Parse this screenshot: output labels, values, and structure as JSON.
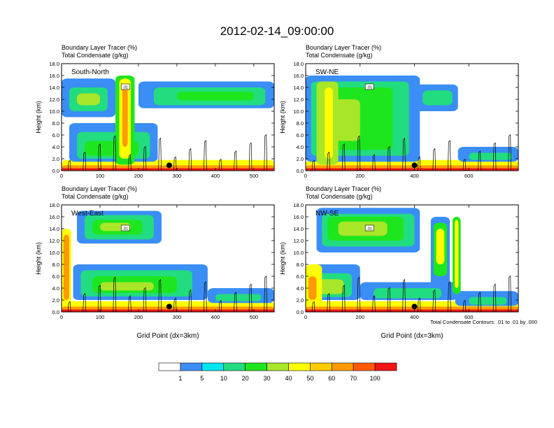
{
  "figure": {
    "title": "2012-02-14_09:00:00",
    "footnote": "Total Condensate Contours: .01 to .01 by .000"
  },
  "chart_data": [
    {
      "type": "heatmap",
      "panel_label": "South-North",
      "subtitle_line1": "Boundary Layer Tracer    (%)",
      "subtitle_line2": "Total Condensate    (g/kg)",
      "xlabel": "",
      "ylabel": "Height (km)",
      "xlim": [
        0,
        553
      ],
      "ylim": [
        0,
        18
      ],
      "xticks": [
        0,
        100,
        200,
        300,
        400,
        500
      ],
      "xtick_labels": [
        "0",
        "100",
        "200",
        "300",
        "400",
        "500"
      ],
      "yticks": [
        0,
        2,
        4,
        6,
        8,
        10,
        12,
        14,
        16,
        18
      ],
      "ytick_labels": [
        "0.0",
        "2.0",
        "4.0",
        "6.0",
        "8.0",
        "10.0",
        "12.0",
        "14.0",
        "16.0",
        "18.0"
      ],
      "contour_label": ".01",
      "marker": {
        "x": 280,
        "y": 0.9
      }
    },
    {
      "type": "heatmap",
      "panel_label": "SW-NE",
      "subtitle_line1": "Boundary Layer Tracer    (%)",
      "subtitle_line2": "Total Condensate    (g/kg)",
      "xlabel": "",
      "ylabel": "Height (km)",
      "xlim": [
        0,
        782
      ],
      "ylim": [
        0,
        18
      ],
      "xticks": [
        0,
        200,
        400,
        600
      ],
      "xtick_labels": [
        "0",
        "200",
        "400",
        "600"
      ],
      "yticks": [
        0,
        2,
        4,
        6,
        8,
        10,
        12,
        14,
        16,
        18
      ],
      "ytick_labels": [
        "0.0",
        "2.0",
        "4.0",
        "6.0",
        "8.0",
        "10.0",
        "12.0",
        "14.0",
        "16.0",
        "18.0"
      ],
      "contour_label": ".01",
      "marker": {
        "x": 400,
        "y": 0.9
      }
    },
    {
      "type": "heatmap",
      "panel_label": "West-East",
      "subtitle_line1": "Boundary Layer Tracer    (%)",
      "subtitle_line2": "Total Condensate    (g/kg)",
      "xlabel": "Grid Point (dx=3km)",
      "ylabel": "Height (km)",
      "xlim": [
        0,
        553
      ],
      "ylim": [
        0,
        18
      ],
      "xticks": [
        0,
        100,
        200,
        300,
        400,
        500
      ],
      "xtick_labels": [
        "0",
        "100",
        "200",
        "300",
        "400",
        "500"
      ],
      "yticks": [
        0,
        2,
        4,
        6,
        8,
        10,
        12,
        14,
        16,
        18
      ],
      "ytick_labels": [
        "0.0",
        "2.0",
        "4.0",
        "6.0",
        "8.0",
        "10.0",
        "12.0",
        "14.0",
        "16.0",
        "18.0"
      ],
      "contour_label": ".01",
      "marker": {
        "x": 280,
        "y": 0.9
      }
    },
    {
      "type": "heatmap",
      "panel_label": "NW-SE",
      "subtitle_line1": "Boundary Layer Tracer    (%)",
      "subtitle_line2": "Total Condensate    (g/kg)",
      "xlabel": "Grid Point (dx=3km)",
      "ylabel": "Height (km)",
      "xlim": [
        0,
        782
      ],
      "ylim": [
        0,
        18
      ],
      "xticks": [
        0,
        200,
        400,
        600
      ],
      "xtick_labels": [
        "0",
        "200",
        "400",
        "600"
      ],
      "yticks": [
        0,
        2,
        4,
        6,
        8,
        10,
        12,
        14,
        16,
        18
      ],
      "ytick_labels": [
        "0.0",
        "2.0",
        "4.0",
        "6.0",
        "8.0",
        "10.0",
        "12.0",
        "14.0",
        "16.0",
        "18.0"
      ],
      "contour_label": ".01",
      "marker": {
        "x": 400,
        "y": 0.9
      }
    }
  ],
  "colorbar": {
    "levels": [
      "1",
      "5",
      "10",
      "20",
      "30",
      "40",
      "50",
      "60",
      "70",
      "100"
    ],
    "colors": [
      "#ffffff",
      "#3a8ef5",
      "#00e6f0",
      "#22dc80",
      "#1ee61e",
      "#a8e628",
      "#ffff00",
      "#ffcc00",
      "#ff9a00",
      "#ff5a00",
      "#f01414"
    ]
  }
}
